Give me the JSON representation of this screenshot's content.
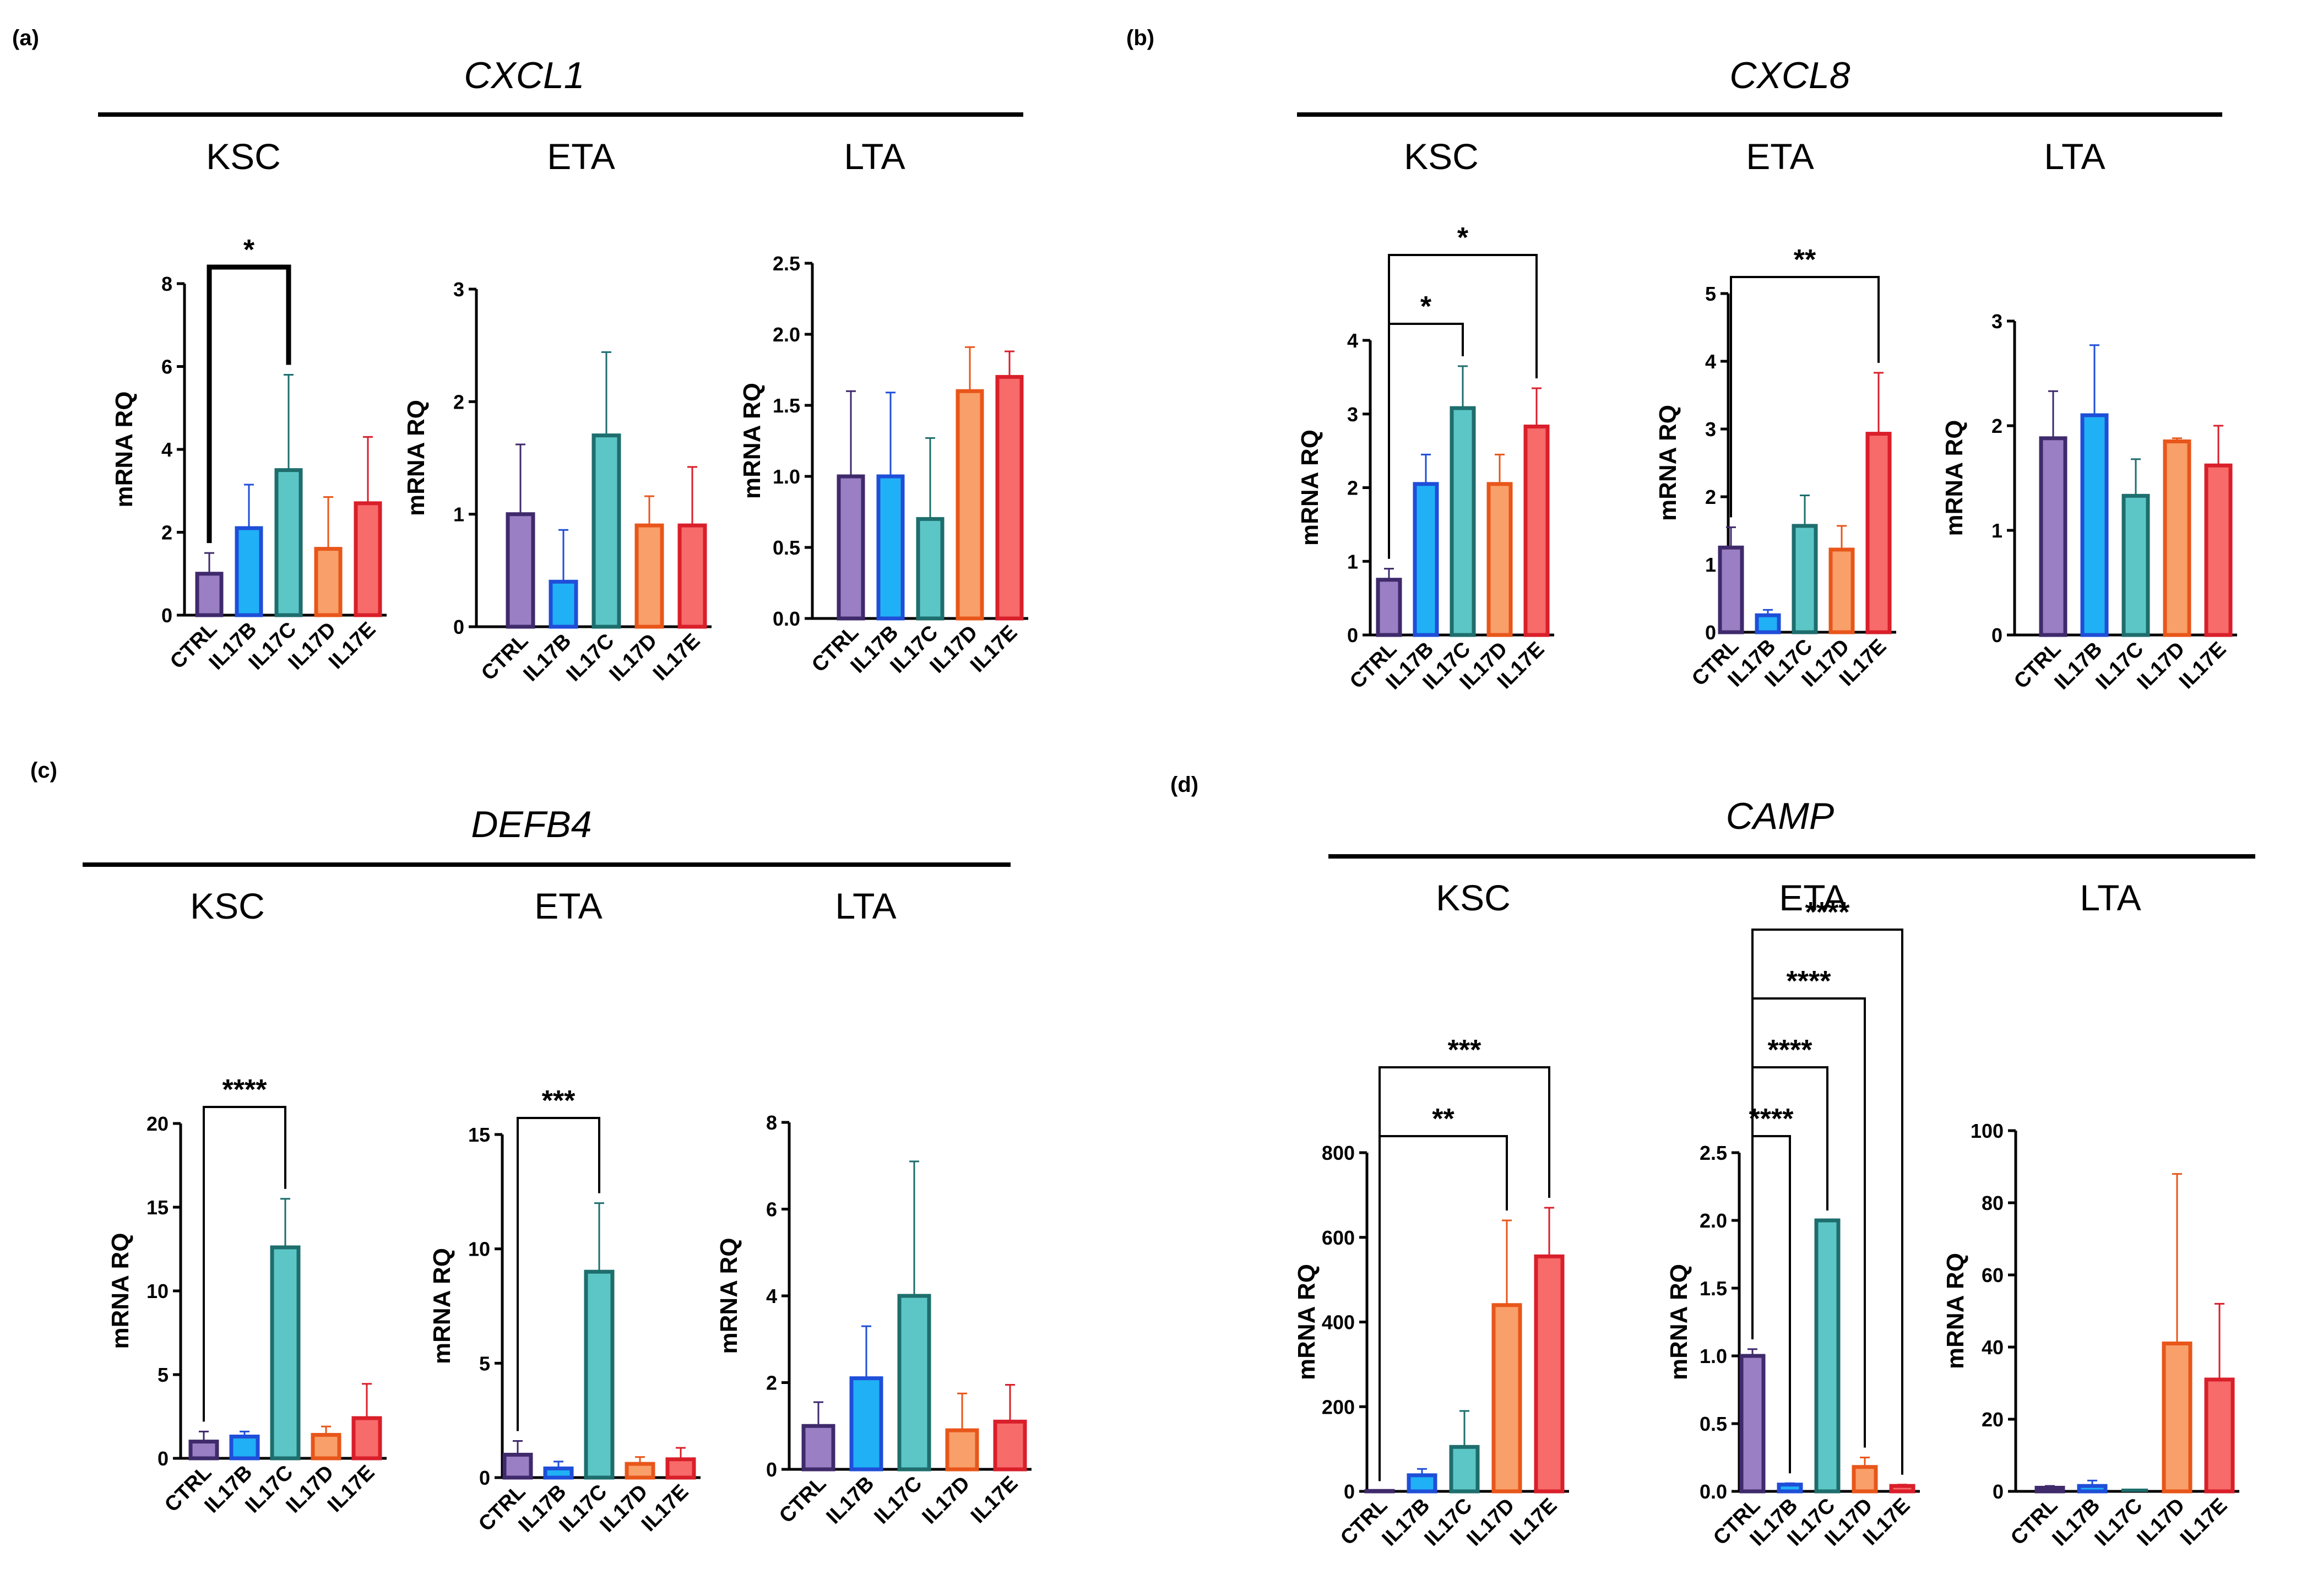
{
  "colors": {
    "CTRL": {
      "fill": "#9b7fc4",
      "stroke": "#3f2a6b"
    },
    "IL17B": {
      "fill": "#1fb0f5",
      "stroke": "#1f4fd8"
    },
    "IL17C": {
      "fill": "#5cc6c6",
      "stroke": "#1f6e6e"
    },
    "IL17D": {
      "fill": "#f9a06a",
      "stroke": "#e8561a"
    },
    "IL17E": {
      "fill": "#f76b6b",
      "stroke": "#d81f2a"
    }
  },
  "panels": [
    {
      "label": "(a)",
      "gene": "CXCL1",
      "groups": [
        "KSC",
        "ETA",
        "LTA"
      ]
    },
    {
      "label": "(b)",
      "gene": "CXCL8",
      "groups": [
        "KSC",
        "ETA",
        "LTA"
      ]
    },
    {
      "label": "(c)",
      "gene": "DEFB4",
      "groups": [
        "KSC",
        "ETA",
        "LTA"
      ]
    },
    {
      "label": "(d)",
      "gene": "CAMP",
      "groups": [
        "KSC",
        "ETA",
        "LTA"
      ]
    }
  ],
  "chart_data": [
    {
      "id": "a-KSC",
      "panel": "(a)",
      "gene": "CXCL1",
      "group": "KSC",
      "type": "bar",
      "ylabel": "mRNA RQ",
      "categories": [
        "CTRL",
        "IL17B",
        "IL17C",
        "IL17D",
        "IL17E"
      ],
      "ylim": [
        0,
        8
      ],
      "yticks": [
        "0",
        "2",
        "4",
        "6",
        "8"
      ],
      "values": [
        1.0,
        2.1,
        3.5,
        1.6,
        2.7
      ],
      "errors": [
        0.5,
        1.05,
        2.3,
        1.25,
        1.6
      ],
      "significance": [
        {
          "from": "CTRL",
          "to": "IL17C",
          "label": "*"
        }
      ]
    },
    {
      "id": "a-ETA",
      "panel": "(a)",
      "gene": "CXCL1",
      "group": "ETA",
      "type": "bar",
      "ylabel": "mRNA RQ",
      "categories": [
        "CTRL",
        "IL17B",
        "IL17C",
        "IL17D",
        "IL17E"
      ],
      "ylim": [
        0,
        3
      ],
      "yticks": [
        "0",
        "1",
        "2",
        "3"
      ],
      "values": [
        1.0,
        0.4,
        1.7,
        0.9,
        0.9
      ],
      "errors": [
        0.62,
        0.46,
        0.74,
        0.26,
        0.52
      ],
      "significance": []
    },
    {
      "id": "a-LTA",
      "panel": "(a)",
      "gene": "CXCL1",
      "group": "LTA",
      "type": "bar",
      "ylabel": "mRNA RQ",
      "categories": [
        "CTRL",
        "IL17B",
        "IL17C",
        "IL17D",
        "IL17E"
      ],
      "ylim": [
        0,
        2.5
      ],
      "yticks": [
        "0.0",
        "0.5",
        "1.0",
        "1.5",
        "2.0",
        "2.5"
      ],
      "values": [
        1.0,
        1.0,
        0.7,
        1.6,
        1.7
      ],
      "errors": [
        0.6,
        0.59,
        0.57,
        0.31,
        0.18
      ],
      "significance": []
    },
    {
      "id": "b-KSC",
      "panel": "(b)",
      "gene": "CXCL8",
      "group": "KSC",
      "type": "bar",
      "ylabel": "mRNA RQ",
      "categories": [
        "CTRL",
        "IL17B",
        "IL17C",
        "IL17D",
        "IL17E"
      ],
      "ylim": [
        0,
        4
      ],
      "yticks": [
        "0",
        "1",
        "2",
        "3",
        "4"
      ],
      "values": [
        0.75,
        2.05,
        3.08,
        2.05,
        2.83
      ],
      "errors": [
        0.15,
        0.4,
        0.57,
        0.4,
        0.52
      ],
      "significance": [
        {
          "from": "CTRL",
          "to": "IL17C",
          "label": "*"
        },
        {
          "from": "CTRL",
          "to": "IL17E",
          "label": "*"
        }
      ]
    },
    {
      "id": "b-ETA",
      "panel": "(b)",
      "gene": "CXCL8",
      "group": "ETA",
      "type": "bar",
      "ylabel": "mRNA RQ",
      "categories": [
        "CTRL",
        "IL17B",
        "IL17C",
        "IL17D",
        "IL17E"
      ],
      "ylim": [
        0,
        5
      ],
      "yticks": [
        "0",
        "1",
        "2",
        "3",
        "4",
        "5"
      ],
      "values": [
        1.25,
        0.25,
        1.57,
        1.22,
        2.93
      ],
      "errors": [
        0.3,
        0.08,
        0.45,
        0.35,
        0.9
      ],
      "significance": [
        {
          "from": "CTRL",
          "to": "IL17E",
          "label": "**"
        }
      ]
    },
    {
      "id": "b-LTA",
      "panel": "(b)",
      "gene": "CXCL8",
      "group": "LTA",
      "type": "bar",
      "ylabel": "mRNA RQ",
      "categories": [
        "CTRL",
        "IL17B",
        "IL17C",
        "IL17D",
        "IL17E"
      ],
      "ylim": [
        0,
        3
      ],
      "yticks": [
        "0",
        "1",
        "2",
        "3"
      ],
      "values": [
        1.88,
        2.1,
        1.33,
        1.85,
        1.62
      ],
      "errors": [
        0.45,
        0.67,
        0.35,
        0.03,
        0.38
      ],
      "significance": []
    },
    {
      "id": "c-KSC",
      "panel": "(c)",
      "gene": "DEFB4",
      "group": "KSC",
      "type": "bar",
      "ylabel": "mRNA RQ",
      "categories": [
        "CTRL",
        "IL17B",
        "IL17C",
        "IL17D",
        "IL17E"
      ],
      "ylim": [
        0,
        20
      ],
      "yticks": [
        "0",
        "5",
        "10",
        "15",
        "20"
      ],
      "values": [
        1.0,
        1.3,
        12.6,
        1.4,
        2.4
      ],
      "errors": [
        0.6,
        0.3,
        2.9,
        0.5,
        2.05
      ],
      "significance": [
        {
          "from": "CTRL",
          "to": "IL17C",
          "label": "****"
        }
      ]
    },
    {
      "id": "c-ETA",
      "panel": "(c)",
      "gene": "DEFB4",
      "group": "ETA",
      "type": "bar",
      "ylabel": "mRNA RQ",
      "categories": [
        "CTRL",
        "IL17B",
        "IL17C",
        "IL17D",
        "IL17E"
      ],
      "ylim": [
        0,
        15
      ],
      "yticks": [
        "0",
        "5",
        "10",
        "15"
      ],
      "values": [
        1.0,
        0.4,
        9.0,
        0.6,
        0.8
      ],
      "errors": [
        0.6,
        0.3,
        3.0,
        0.3,
        0.5
      ],
      "significance": [
        {
          "from": "CTRL",
          "to": "IL17C",
          "label": "***"
        }
      ]
    },
    {
      "id": "c-LTA",
      "panel": "(c)",
      "gene": "DEFB4",
      "group": "LTA",
      "type": "bar",
      "ylabel": "mRNA RQ",
      "categories": [
        "CTRL",
        "IL17B",
        "IL17C",
        "IL17D",
        "IL17E"
      ],
      "ylim": [
        0,
        8
      ],
      "yticks": [
        "0",
        "2",
        "4",
        "6",
        "8"
      ],
      "values": [
        1.0,
        2.1,
        4.0,
        0.9,
        1.1
      ],
      "errors": [
        0.55,
        1.2,
        3.1,
        0.85,
        0.85
      ],
      "significance": []
    },
    {
      "id": "d-KSC",
      "panel": "(d)",
      "gene": "CAMP",
      "group": "KSC",
      "type": "bar",
      "ylabel": "mRNA RQ",
      "categories": [
        "CTRL",
        "IL17B",
        "IL17C",
        "IL17D",
        "IL17E"
      ],
      "ylim": [
        0,
        800
      ],
      "yticks": [
        "0",
        "200",
        "400",
        "600",
        "800"
      ],
      "values": [
        1,
        38,
        105,
        440,
        555
      ],
      "errors": [
        0,
        15,
        85,
        200,
        115
      ],
      "significance": [
        {
          "from": "CTRL",
          "to": "IL17D",
          "label": "**"
        },
        {
          "from": "CTRL",
          "to": "IL17E",
          "label": "***"
        }
      ]
    },
    {
      "id": "d-ETA",
      "panel": "(d)",
      "gene": "CAMP",
      "group": "ETA",
      "type": "bar",
      "ylabel": "mRNA RQ",
      "categories": [
        "CTRL",
        "IL17B",
        "IL17C",
        "IL17D",
        "IL17E"
      ],
      "ylim": [
        0,
        2.5
      ],
      "yticks": [
        "0.0",
        "0.5",
        "1.0",
        "1.5",
        "2.0",
        "2.5"
      ],
      "values": [
        1.0,
        0.05,
        2.0,
        0.18,
        0.04
      ],
      "errors": [
        0.05,
        0.01,
        0.0,
        0.07,
        0.01
      ],
      "significance": [
        {
          "from": "CTRL",
          "to": "IL17B",
          "label": "****"
        },
        {
          "from": "CTRL",
          "to": "IL17C",
          "label": "****"
        },
        {
          "from": "CTRL",
          "to": "IL17D",
          "label": "****"
        },
        {
          "from": "CTRL",
          "to": "IL17E",
          "label": "****"
        }
      ]
    },
    {
      "id": "d-LTA",
      "panel": "(d)",
      "gene": "CAMP",
      "group": "LTA",
      "type": "bar",
      "ylabel": "mRNA RQ",
      "categories": [
        "CTRL",
        "IL17B",
        "IL17C",
        "IL17D",
        "IL17E"
      ],
      "ylim": [
        0,
        100
      ],
      "yticks": [
        "0",
        "20",
        "40",
        "60",
        "80",
        "100"
      ],
      "values": [
        1.0,
        1.5,
        0,
        41,
        31
      ],
      "errors": [
        0.5,
        1.5,
        0,
        47,
        21
      ],
      "significance": []
    }
  ]
}
